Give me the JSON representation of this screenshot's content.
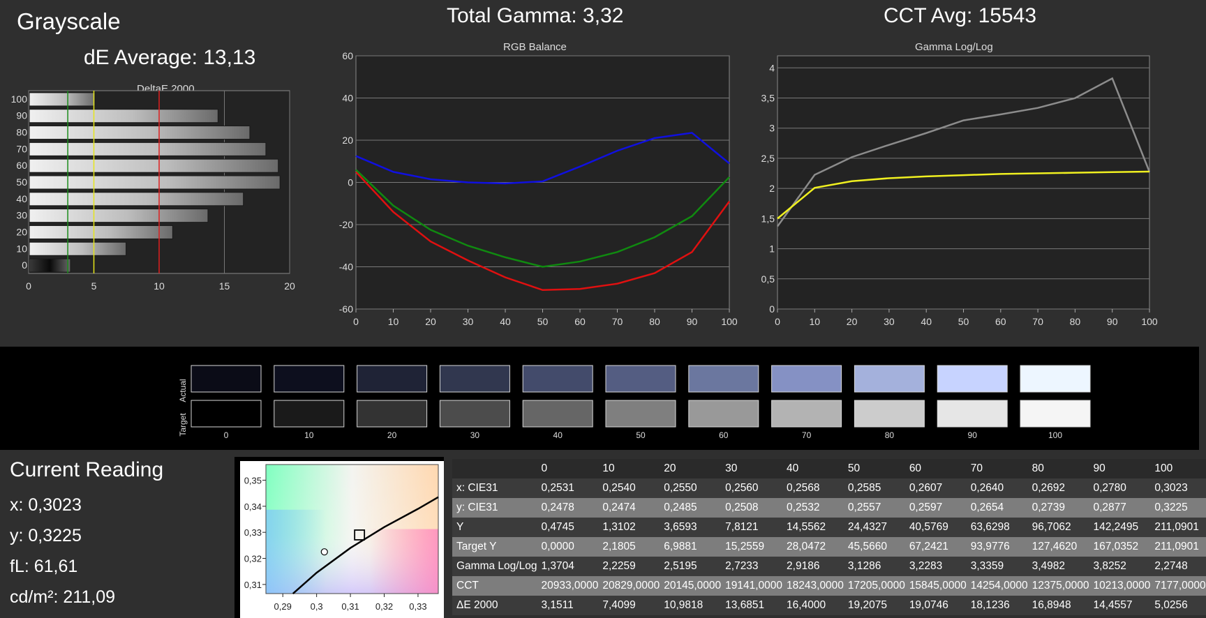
{
  "header": {
    "title": "Grayscale",
    "de_average": "dE Average: 13,13",
    "total_gamma": "Total Gamma: 3,32",
    "cct_avg": "CCT Avg: 15543"
  },
  "chart_data": [
    {
      "type": "bar",
      "orientation": "horizontal",
      "title": "DeltaE 2000",
      "categories": [
        "100",
        "90",
        "80",
        "70",
        "60",
        "50",
        "40",
        "30",
        "20",
        "10",
        "0"
      ],
      "values": [
        5.0256,
        14.4557,
        16.8948,
        18.1236,
        19.0746,
        19.2075,
        16.4,
        13.6851,
        10.9818,
        7.4099,
        3.1511
      ],
      "xlim": [
        0,
        20
      ],
      "xticks": [
        "0",
        "5",
        "10",
        "15",
        "20"
      ],
      "reference_lines": [
        {
          "x": 3,
          "color": "#1a8c1a"
        },
        {
          "x": 5,
          "color": "#e6e61a"
        },
        {
          "x": 10,
          "color": "#e02020"
        }
      ],
      "grid": true
    },
    {
      "type": "line",
      "title": "RGB Balance",
      "x": [
        0,
        10,
        20,
        30,
        40,
        50,
        60,
        70,
        80,
        90,
        100
      ],
      "xticks": [
        "0",
        "10",
        "20",
        "30",
        "40",
        "50",
        "60",
        "70",
        "80",
        "90",
        "100"
      ],
      "ylim": [
        -60,
        60
      ],
      "yticks": [
        "60",
        "40",
        "20",
        "0",
        "-20",
        "-40",
        "-60"
      ],
      "series": [
        {
          "color": "#e01010",
          "values": [
            5,
            -14,
            -28,
            -37,
            -45,
            -51,
            -50.5,
            -48,
            -43,
            -33,
            -9
          ]
        },
        {
          "color": "#108a10",
          "values": [
            6,
            -11,
            -22.5,
            -30,
            -35.5,
            -40,
            -37.5,
            -33,
            -26,
            -16,
            2.5
          ]
        },
        {
          "color": "#1010e0",
          "values": [
            12.5,
            5,
            1.5,
            0,
            -0.5,
            0.5,
            7.5,
            15,
            21,
            23.5,
            9
          ]
        }
      ],
      "grid": true
    },
    {
      "type": "line",
      "title": "Gamma Log/Log",
      "x": [
        0,
        10,
        20,
        30,
        40,
        50,
        60,
        70,
        80,
        90,
        100
      ],
      "xticks": [
        "0",
        "10",
        "20",
        "30",
        "40",
        "50",
        "60",
        "70",
        "80",
        "90",
        "100"
      ],
      "ylim": [
        0,
        4.2
      ],
      "yticks": [
        "4",
        "3,5",
        "3",
        "2,5",
        "2",
        "1,5",
        "1",
        "0,5",
        "0"
      ],
      "series": [
        {
          "color": "#8c8c8c",
          "values": [
            1.3704,
            2.2259,
            2.5195,
            2.7233,
            2.9186,
            3.1286,
            3.2283,
            3.3359,
            3.4982,
            3.8252,
            2.2748
          ]
        },
        {
          "color": "#f0f020",
          "values": [
            1.5,
            2.01,
            2.12,
            2.17,
            2.2,
            2.22,
            2.24,
            2.25,
            2.26,
            2.27,
            2.28
          ]
        }
      ],
      "grid": true
    },
    {
      "type": "scatter",
      "title": "",
      "xlim": [
        0.285,
        0.336
      ],
      "ylim": [
        0.3065,
        0.356
      ],
      "xticks": [
        "0,29",
        "0,3",
        "0,31",
        "0,32",
        "0,33"
      ],
      "yticks": [
        "0,35",
        "0,34",
        "0,33",
        "0,32",
        "0,31"
      ],
      "target": {
        "x": 0.3127,
        "y": 0.329
      },
      "reading": {
        "x": 0.3023,
        "y": 0.3225
      },
      "locus": [
        [
          0.293,
          0.306
        ],
        [
          0.3,
          0.3145
        ],
        [
          0.31,
          0.324
        ],
        [
          0.32,
          0.332
        ],
        [
          0.33,
          0.339
        ],
        [
          0.336,
          0.3435
        ]
      ]
    }
  ],
  "swatches": {
    "actual_label": "Actual",
    "target_label": "Target",
    "labels": [
      "0",
      "10",
      "20",
      "30",
      "40",
      "50",
      "60",
      "70",
      "80",
      "90",
      "100"
    ],
    "actual_colors": [
      "#0b0c17",
      "#0d0f1e",
      "#1f2336",
      "#31374f",
      "#434b6b",
      "#545d82",
      "#6b779f",
      "#8591c4",
      "#a4b1dc",
      "#c7d3ff",
      "#edf6ff"
    ],
    "target_colors": [
      "#000000",
      "#1a1a1a",
      "#333333",
      "#4c4c4c",
      "#666666",
      "#7f7f7f",
      "#999999",
      "#b3b3b3",
      "#cccccc",
      "#e6e6e6",
      "#f5f5f5"
    ]
  },
  "current_reading": {
    "title": "Current Reading",
    "x": "x: 0,3023",
    "y": "y: 0,3225",
    "fl": "fL: 61,61",
    "cdm2": "cd/m²: 211,09"
  },
  "table": {
    "columns": [
      "0",
      "10",
      "20",
      "30",
      "40",
      "50",
      "60",
      "70",
      "80",
      "90",
      "100"
    ],
    "rows": [
      {
        "label": "x: CIE31",
        "values": [
          "0,2531",
          "0,2540",
          "0,2550",
          "0,2560",
          "0,2568",
          "0,2585",
          "0,2607",
          "0,2640",
          "0,2692",
          "0,2780",
          "0,3023"
        ]
      },
      {
        "label": "y: CIE31",
        "values": [
          "0,2478",
          "0,2474",
          "0,2485",
          "0,2508",
          "0,2532",
          "0,2557",
          "0,2597",
          "0,2654",
          "0,2739",
          "0,2877",
          "0,3225"
        ]
      },
      {
        "label": "Y",
        "values": [
          "0,4745",
          "1,3102",
          "3,6593",
          "7,8121",
          "14,5562",
          "24,4327",
          "40,5769",
          "63,6298",
          "96,7062",
          "142,2495",
          "211,0901"
        ]
      },
      {
        "label": "Target Y",
        "values": [
          "0,0000",
          "2,1805",
          "6,9881",
          "15,2559",
          "28,0472",
          "45,5660",
          "67,2421",
          "93,9776",
          "127,4620",
          "167,0352",
          "211,0901"
        ]
      },
      {
        "label": "Gamma Log/Log",
        "values": [
          "1,3704",
          "2,2259",
          "2,5195",
          "2,7233",
          "2,9186",
          "3,1286",
          "3,2283",
          "3,3359",
          "3,4982",
          "3,8252",
          "2,2748"
        ]
      },
      {
        "label": "CCT",
        "values": [
          "20933,0000",
          "20829,0000",
          "20145,0000",
          "19141,0000",
          "18243,0000",
          "17205,0000",
          "15845,0000",
          "14254,0000",
          "12375,0000",
          "10213,0000",
          "7177,0000"
        ]
      },
      {
        "label": "ΔE 2000",
        "values": [
          "3,1511",
          "7,4099",
          "10,9818",
          "13,6851",
          "16,4000",
          "19,2075",
          "19,0746",
          "18,1236",
          "16,8948",
          "14,4557",
          "5,0256"
        ]
      }
    ]
  }
}
